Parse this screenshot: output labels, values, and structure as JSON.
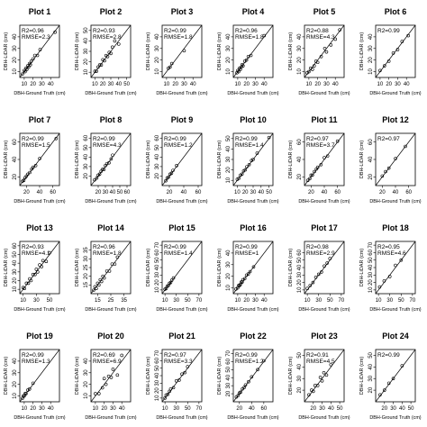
{
  "figure": {
    "xlabel": "DBH-Ground Truth (cm)",
    "ylabel": "DBH-LiDAR (cm)"
  },
  "chart_data": [
    {
      "type": "scatter",
      "title": "Plot 1",
      "r2": "R2=0.96",
      "rmse": "RMSE=2.3",
      "xlim": [
        5,
        50
      ],
      "ylim": [
        5,
        50
      ],
      "xticks": [
        10,
        20,
        30,
        40
      ],
      "yticks": [
        10,
        20,
        30,
        40
      ],
      "x": [
        8,
        10,
        11,
        12,
        13,
        14,
        15,
        16,
        17,
        18,
        20,
        22,
        25,
        28,
        45
      ],
      "y": [
        8,
        11,
        10,
        13,
        12,
        15,
        14,
        17,
        16,
        19,
        21,
        24,
        24,
        29,
        44
      ]
    },
    {
      "type": "scatter",
      "title": "Plot 2",
      "r2": "R2=0.93",
      "rmse": "RMSE=2.8",
      "xlim": [
        5,
        55
      ],
      "ylim": [
        5,
        55
      ],
      "xticks": [
        10,
        20,
        30,
        40,
        50
      ],
      "yticks": [
        10,
        20,
        30,
        40,
        50
      ],
      "x": [
        10,
        12,
        14,
        16,
        18,
        20,
        22,
        24,
        26,
        28,
        30,
        32,
        35,
        40
      ],
      "y": [
        11,
        11,
        15,
        17,
        17,
        22,
        21,
        26,
        25,
        29,
        28,
        34,
        40,
        37
      ]
    },
    {
      "type": "scatter",
      "title": "Plot 3",
      "r2": "R2=0.99",
      "rmse": "RMSE=1.8",
      "xlim": [
        5,
        50
      ],
      "ylim": [
        5,
        50
      ],
      "xticks": [
        10,
        20,
        30,
        40
      ],
      "yticks": [
        10,
        20,
        30,
        40
      ],
      "x": [
        12,
        14,
        16,
        30
      ],
      "y": [
        13,
        14,
        17,
        28
      ]
    },
    {
      "type": "scatter",
      "title": "Plot 4",
      "r2": "R2=0.96",
      "rmse": "RMSE=1.8",
      "xlim": [
        5,
        50
      ],
      "ylim": [
        5,
        50
      ],
      "xticks": [
        10,
        20,
        30,
        40
      ],
      "yticks": [
        10,
        20,
        30,
        40
      ],
      "x": [
        9,
        10,
        11,
        12,
        13,
        14,
        15,
        16,
        18,
        20,
        22,
        25,
        40
      ],
      "y": [
        9,
        11,
        10,
        13,
        12,
        14,
        16,
        15,
        19,
        20,
        23,
        24,
        41
      ]
    },
    {
      "type": "scatter",
      "title": "Plot 5",
      "r2": "R2=0.88",
      "rmse": "RMSE=4.3",
      "xlim": [
        5,
        50
      ],
      "ylim": [
        5,
        50
      ],
      "xticks": [
        10,
        20,
        30,
        40
      ],
      "yticks": [
        10,
        20,
        30,
        40
      ],
      "x": [
        8,
        10,
        12,
        14,
        16,
        18,
        20,
        24,
        28,
        30,
        35,
        40,
        45
      ],
      "y": [
        9,
        10,
        13,
        12,
        15,
        19,
        18,
        23,
        30,
        27,
        33,
        38,
        46
      ]
    },
    {
      "type": "scatter",
      "title": "Plot 6",
      "r2": "R2=0.99",
      "rmse": "",
      "xlim": [
        5,
        50
      ],
      "ylim": [
        5,
        50
      ],
      "xticks": [
        10,
        20,
        30,
        40
      ],
      "yticks": [
        10,
        20,
        30,
        40
      ],
      "x": [
        10,
        15,
        20,
        25,
        30,
        35,
        42
      ],
      "y": [
        11,
        15,
        19,
        26,
        29,
        36,
        41
      ]
    },
    {
      "type": "scatter",
      "title": "Plot 7",
      "r2": "R2=0.99",
      "rmse": "RMSE=1.5",
      "xlim": [
        10,
        70
      ],
      "ylim": [
        10,
        70
      ],
      "xticks": [
        20,
        40,
        60
      ],
      "yticks": [
        20,
        40,
        60
      ],
      "x": [
        14,
        16,
        18,
        20,
        22,
        25,
        28,
        30,
        34,
        40,
        65
      ],
      "y": [
        15,
        16,
        19,
        21,
        23,
        25,
        29,
        31,
        33,
        41,
        64
      ]
    },
    {
      "type": "scatter",
      "title": "Plot 8",
      "r2": "R2=0.99",
      "rmse": "RMSE=4.3",
      "xlim": [
        10,
        65
      ],
      "ylim": [
        10,
        65
      ],
      "xticks": [
        20,
        30,
        40,
        50,
        60
      ],
      "yticks": [
        20,
        30,
        40,
        50,
        60
      ],
      "x": [
        15,
        18,
        20,
        22,
        24,
        26,
        28,
        30,
        32,
        35,
        38,
        40
      ],
      "y": [
        16,
        18,
        21,
        22,
        25,
        27,
        27,
        31,
        33,
        34,
        38,
        42
      ]
    },
    {
      "type": "scatter",
      "title": "Plot 9",
      "r2": "R2=0.99",
      "rmse": "RMSE=1.2",
      "xlim": [
        10,
        65
      ],
      "ylim": [
        10,
        65
      ],
      "xticks": [
        20,
        40,
        60
      ],
      "yticks": [
        20,
        30,
        40,
        50,
        60
      ],
      "x": [
        15,
        17,
        19,
        21,
        23,
        25,
        30
      ],
      "y": [
        15,
        18,
        19,
        22,
        23,
        26,
        31
      ]
    },
    {
      "type": "scatter",
      "title": "Plot 10",
      "r2": "R2=0.99",
      "rmse": "RMSE=1.4",
      "xlim": [
        5,
        55
      ],
      "ylim": [
        5,
        55
      ],
      "xticks": [
        10,
        20,
        30,
        40,
        50
      ],
      "yticks": [
        10,
        20,
        30,
        40,
        50
      ],
      "x": [
        10,
        12,
        14,
        16,
        18,
        20,
        22,
        25,
        28,
        30,
        35,
        50
      ],
      "y": [
        11,
        12,
        15,
        16,
        19,
        20,
        23,
        25,
        29,
        30,
        36,
        51
      ]
    },
    {
      "type": "scatter",
      "title": "Plot 11",
      "r2": "R2=0.97",
      "rmse": "RMSE=3.7",
      "xlim": [
        10,
        70
      ],
      "ylim": [
        10,
        70
      ],
      "xticks": [
        20,
        40,
        60
      ],
      "yticks": [
        20,
        40,
        60
      ],
      "x": [
        15,
        18,
        20,
        22,
        25,
        28,
        30,
        35,
        40,
        45,
        60
      ],
      "y": [
        16,
        18,
        22,
        22,
        26,
        29,
        31,
        34,
        42,
        44,
        61
      ]
    },
    {
      "type": "scatter",
      "title": "Plot 12",
      "r2": "R2=0.97",
      "rmse": "",
      "xlim": [
        10,
        70
      ],
      "ylim": [
        10,
        70
      ],
      "xticks": [
        20,
        40,
        60
      ],
      "yticks": [
        20,
        40,
        60
      ],
      "x": [
        20,
        25,
        30,
        40,
        55
      ],
      "y": [
        21,
        26,
        30,
        41,
        55
      ]
    },
    {
      "type": "scatter",
      "title": "Plot 13",
      "r2": "R2=0.93",
      "rmse": "RMSE=4.1",
      "xlim": [
        5,
        65
      ],
      "ylim": [
        5,
        65
      ],
      "xticks": [
        10,
        30,
        50
      ],
      "yticks": [
        10,
        20,
        30,
        40,
        50,
        60
      ],
      "x": [
        10,
        12,
        15,
        18,
        20,
        22,
        25,
        28,
        30,
        32,
        35,
        38,
        40,
        45,
        50
      ],
      "y": [
        12,
        11,
        17,
        17,
        22,
        20,
        27,
        27,
        33,
        30,
        38,
        36,
        43,
        42,
        52
      ]
    },
    {
      "type": "scatter",
      "title": "Plot 14",
      "r2": "R2=0.96",
      "rmse": "RMSE=1.8",
      "xlim": [
        10,
        40
      ],
      "ylim": [
        10,
        40
      ],
      "xticks": [
        15,
        25,
        35
      ],
      "yticks": [
        15,
        20,
        25,
        30,
        35
      ],
      "x": [
        12,
        13,
        14,
        15,
        16,
        17,
        18,
        19,
        20,
        22,
        24,
        26,
        28,
        30
      ],
      "y": [
        12,
        14,
        13,
        16,
        15,
        18,
        17,
        20,
        19,
        23,
        23,
        27,
        27,
        31
      ]
    },
    {
      "type": "scatter",
      "title": "Plot 15",
      "r2": "R2=0.99",
      "rmse": "RMSE=1.4",
      "xlim": [
        5,
        75
      ],
      "ylim": [
        5,
        75
      ],
      "xticks": [
        10,
        30,
        50,
        70
      ],
      "yticks": [
        10,
        20,
        30,
        40,
        50,
        60,
        70
      ],
      "x": [
        10,
        12,
        14,
        16,
        18,
        20,
        22,
        25
      ],
      "y": [
        11,
        12,
        15,
        16,
        19,
        20,
        23,
        26
      ]
    },
    {
      "type": "scatter",
      "title": "Plot 16",
      "r2": "R2=0.99",
      "rmse": "RMSE=1",
      "xlim": [
        5,
        50
      ],
      "ylim": [
        5,
        50
      ],
      "xticks": [
        10,
        20,
        30,
        40
      ],
      "yticks": [
        10,
        20,
        30,
        40
      ],
      "x": [
        8,
        10,
        11,
        12,
        13,
        14,
        15,
        16,
        18,
        20,
        22,
        24,
        28
      ],
      "y": [
        9,
        10,
        12,
        12,
        13,
        15,
        15,
        17,
        18,
        21,
        22,
        24,
        28
      ]
    },
    {
      "type": "scatter",
      "title": "Plot 17",
      "r2": "R2=0.98",
      "rmse": "RMSE=2.9",
      "xlim": [
        5,
        75
      ],
      "ylim": [
        5,
        75
      ],
      "xticks": [
        10,
        30,
        50,
        70
      ],
      "yticks": [
        10,
        20,
        30,
        40,
        50,
        60
      ],
      "x": [
        10,
        15,
        20,
        25,
        30,
        35,
        40,
        45,
        50
      ],
      "y": [
        12,
        16,
        20,
        27,
        31,
        34,
        42,
        46,
        52
      ]
    },
    {
      "type": "scatter",
      "title": "Plot 18",
      "r2": "R2=0.95",
      "rmse": "RMSE=4.6",
      "xlim": [
        5,
        75
      ],
      "ylim": [
        5,
        75
      ],
      "xticks": [
        10,
        30,
        50,
        70
      ],
      "yticks": [
        10,
        20,
        30,
        40,
        50,
        60,
        70
      ],
      "x": [
        12,
        20,
        30,
        40,
        50
      ],
      "y": [
        14,
        22,
        28,
        43,
        50
      ]
    },
    {
      "type": "scatter",
      "title": "Plot 19",
      "r2": "R2=0.99",
      "rmse": "RMSE=1.3",
      "xlim": [
        5,
        50
      ],
      "ylim": [
        5,
        50
      ],
      "xticks": [
        10,
        20,
        30,
        40
      ],
      "yticks": [
        10,
        20,
        30,
        40
      ],
      "x": [
        8,
        9,
        10,
        11,
        12,
        14,
        16,
        20
      ],
      "y": [
        8,
        10,
        10,
        12,
        12,
        15,
        16,
        21
      ]
    },
    {
      "type": "scatter",
      "title": "Plot 20",
      "r2": "R2=0.69",
      "rmse": "RMSE=6.9",
      "xlim": [
        5,
        50
      ],
      "ylim": [
        5,
        50
      ],
      "xticks": [
        10,
        20,
        30,
        40
      ],
      "yticks": [
        10,
        20,
        30,
        40
      ],
      "x": [
        10,
        14,
        18,
        20,
        22,
        25,
        28,
        30,
        35,
        40
      ],
      "y": [
        12,
        12,
        17,
        25,
        20,
        27,
        26,
        33,
        28,
        45
      ]
    },
    {
      "type": "scatter",
      "title": "Plot 21",
      "r2": "R2=0.97",
      "rmse": "RMSE=3.3",
      "xlim": [
        5,
        75
      ],
      "ylim": [
        5,
        75
      ],
      "xticks": [
        10,
        30,
        50,
        70
      ],
      "yticks": [
        10,
        20,
        30,
        40,
        50,
        60,
        70
      ],
      "x": [
        10,
        12,
        15,
        18,
        20,
        25,
        30,
        35,
        40,
        45,
        50
      ],
      "y": [
        10,
        14,
        15,
        19,
        22,
        24,
        33,
        34,
        42,
        44,
        52
      ]
    },
    {
      "type": "scatter",
      "title": "Plot 22",
      "r2": "R2=0.99",
      "rmse": "RMSE=1.2",
      "xlim": [
        10,
        75
      ],
      "ylim": [
        10,
        75
      ],
      "xticks": [
        20,
        40,
        60
      ],
      "yticks": [
        20,
        30,
        40,
        50,
        60,
        70
      ],
      "x": [
        15,
        18,
        20,
        22,
        25,
        28,
        30,
        35,
        40,
        50,
        60
      ],
      "y": [
        16,
        18,
        21,
        22,
        26,
        28,
        31,
        35,
        41,
        50,
        61
      ]
    },
    {
      "type": "scatter",
      "title": "Plot 23",
      "r2": "R2=0.91",
      "rmse": "RMSE=4.5",
      "xlim": [
        10,
        55
      ],
      "ylim": [
        10,
        55
      ],
      "xticks": [
        20,
        30,
        40,
        50
      ],
      "yticks": [
        20,
        30,
        40,
        50
      ],
      "x": [
        15,
        18,
        20,
        22,
        25,
        28,
        30,
        32,
        35,
        40
      ],
      "y": [
        16,
        20,
        19,
        24,
        24,
        31,
        28,
        35,
        33,
        42
      ]
    },
    {
      "type": "scatter",
      "title": "Plot 24",
      "r2": "R2=0.99",
      "rmse": "",
      "xlim": [
        10,
        55
      ],
      "ylim": [
        10,
        55
      ],
      "xticks": [
        20,
        30,
        40,
        50
      ],
      "yticks": [
        20,
        30,
        40,
        50
      ],
      "x": [
        15,
        20,
        25,
        30,
        40
      ],
      "y": [
        16,
        20,
        26,
        30,
        41
      ]
    }
  ]
}
